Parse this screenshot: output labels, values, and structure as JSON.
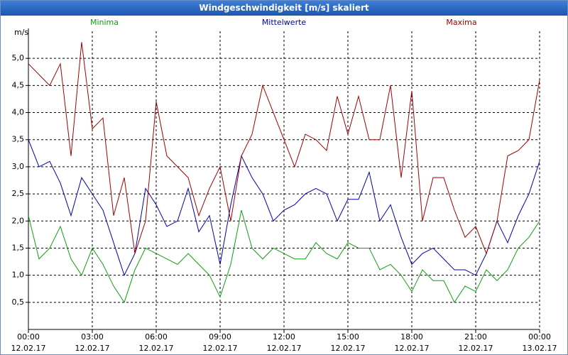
{
  "window_title": "Windgeschwindigkeit [m/s] skaliert",
  "chart_data": {
    "type": "line",
    "y_label": "m/s",
    "x": [
      0,
      0.5,
      1,
      1.5,
      2,
      2.5,
      3,
      3.5,
      4,
      4.5,
      5,
      5.5,
      6,
      6.5,
      7,
      7.5,
      8,
      8.5,
      9,
      9.5,
      10,
      10.5,
      11,
      11.5,
      12,
      12.5,
      13,
      13.5,
      14,
      14.5,
      15,
      15.5,
      16,
      16.5,
      17,
      17.5,
      18,
      18.5,
      19,
      19.5,
      20,
      20.5,
      21,
      21.5,
      22,
      22.5,
      23,
      23.5,
      24
    ],
    "xlim": [
      0,
      24
    ],
    "xticks": [
      {
        "value": 0,
        "label": "00:00"
      },
      {
        "value": 3,
        "label": "03:00"
      },
      {
        "value": 6,
        "label": "06:00"
      },
      {
        "value": 9,
        "label": "09:00"
      },
      {
        "value": 12,
        "label": "12:00"
      },
      {
        "value": 15,
        "label": "15:00"
      },
      {
        "value": 18,
        "label": "18:00"
      },
      {
        "value": 21,
        "label": "21:00"
      },
      {
        "value": 24,
        "label": "00:00"
      }
    ],
    "xtick_dates": [
      "12.02.17",
      "12.02.17",
      "12.02.17",
      "12.02.17",
      "12.02.17",
      "12.02.17",
      "12.02.17",
      "12.02.17",
      "13.02.17"
    ],
    "ylim": [
      0,
      5.5
    ],
    "yticks": [
      {
        "value": 0.5,
        "label": "0,5"
      },
      {
        "value": 1,
        "label": "1,0"
      },
      {
        "value": 1.5,
        "label": "1,5"
      },
      {
        "value": 2,
        "label": "2,0"
      },
      {
        "value": 2.5,
        "label": "2,5"
      },
      {
        "value": 3,
        "label": "3,0"
      },
      {
        "value": 3.5,
        "label": "3,5"
      },
      {
        "value": 4,
        "label": "4,0"
      },
      {
        "value": 4.5,
        "label": "4,5"
      },
      {
        "value": 5,
        "label": "5,0"
      }
    ],
    "grid": true,
    "series": [
      {
        "name": "Minima",
        "color": "#10a010",
        "values": [
          2.1,
          1.3,
          1.5,
          1.9,
          1.3,
          1.0,
          1.5,
          1.2,
          0.8,
          0.5,
          1.1,
          1.5,
          1.4,
          1.3,
          1.2,
          1.4,
          1.2,
          1.0,
          0.6,
          1.2,
          2.2,
          1.5,
          1.3,
          1.5,
          1.4,
          1.3,
          1.3,
          1.6,
          1.4,
          1.3,
          1.6,
          1.5,
          1.5,
          1.1,
          1.2,
          1.0,
          0.7,
          1.1,
          0.9,
          0.9,
          0.5,
          0.8,
          0.7,
          1.1,
          0.9,
          1.1,
          1.5,
          1.7,
          2.0
        ]
      },
      {
        "name": "Mittelwerte",
        "color": "#0000b0",
        "values": [
          3.5,
          3.0,
          3.1,
          2.7,
          2.1,
          2.8,
          2.5,
          2.2,
          1.6,
          1.0,
          1.4,
          2.6,
          2.3,
          1.9,
          2.0,
          2.6,
          1.8,
          2.1,
          1.2,
          2.3,
          3.2,
          2.8,
          2.5,
          2.0,
          2.2,
          2.3,
          2.5,
          2.6,
          2.5,
          2.0,
          2.4,
          2.4,
          2.9,
          2.0,
          2.3,
          1.7,
          1.2,
          1.4,
          1.5,
          1.3,
          1.1,
          1.1,
          1.0,
          1.4,
          2.0,
          1.6,
          2.1,
          2.5,
          3.1
        ]
      },
      {
        "name": "Maxima",
        "color": "#a00000",
        "values": [
          4.9,
          4.7,
          4.5,
          4.9,
          3.2,
          5.3,
          3.7,
          3.9,
          2.1,
          2.8,
          1.4,
          2.0,
          4.2,
          3.2,
          3.0,
          2.8,
          2.1,
          2.6,
          3.0,
          2.0,
          3.2,
          3.6,
          4.5,
          4.0,
          3.5,
          3.0,
          3.6,
          3.5,
          3.3,
          4.3,
          3.6,
          4.3,
          3.5,
          3.5,
          4.5,
          2.8,
          4.4,
          2.0,
          2.8,
          2.8,
          2.2,
          1.7,
          1.9,
          1.4,
          2.0,
          3.2,
          3.3,
          3.5,
          4.6
        ]
      }
    ]
  }
}
